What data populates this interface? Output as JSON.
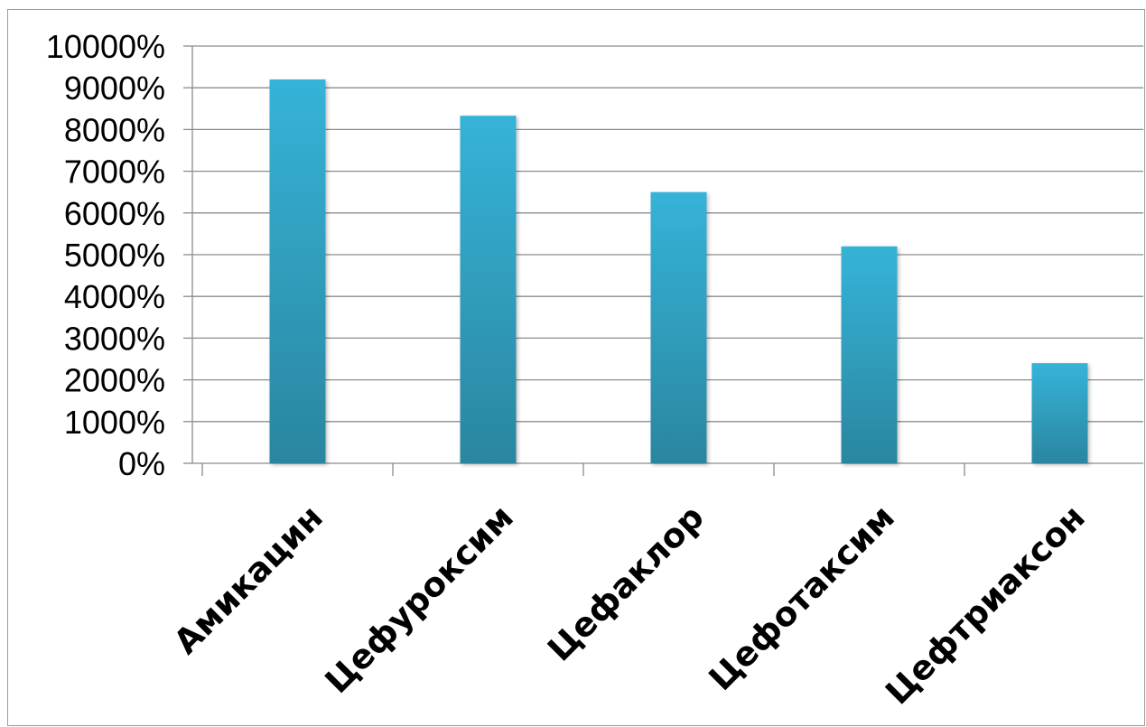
{
  "chart_data": {
    "type": "bar",
    "categories": [
      "Амикацин",
      "Цефуроксим",
      "Цефаклор",
      "Цефотаксим",
      "Цефтриаксон"
    ],
    "values": [
      9200,
      8330,
      6500,
      5200,
      2400
    ],
    "title": "",
    "xlabel": "",
    "ylabel": "",
    "ylim": [
      0,
      10000
    ],
    "ytick_step": 1000,
    "ytick_suffix": "%",
    "grid": true,
    "legend": "none",
    "bar_color": "#35b3d8",
    "bar_color_dark": "#2b86a0"
  }
}
